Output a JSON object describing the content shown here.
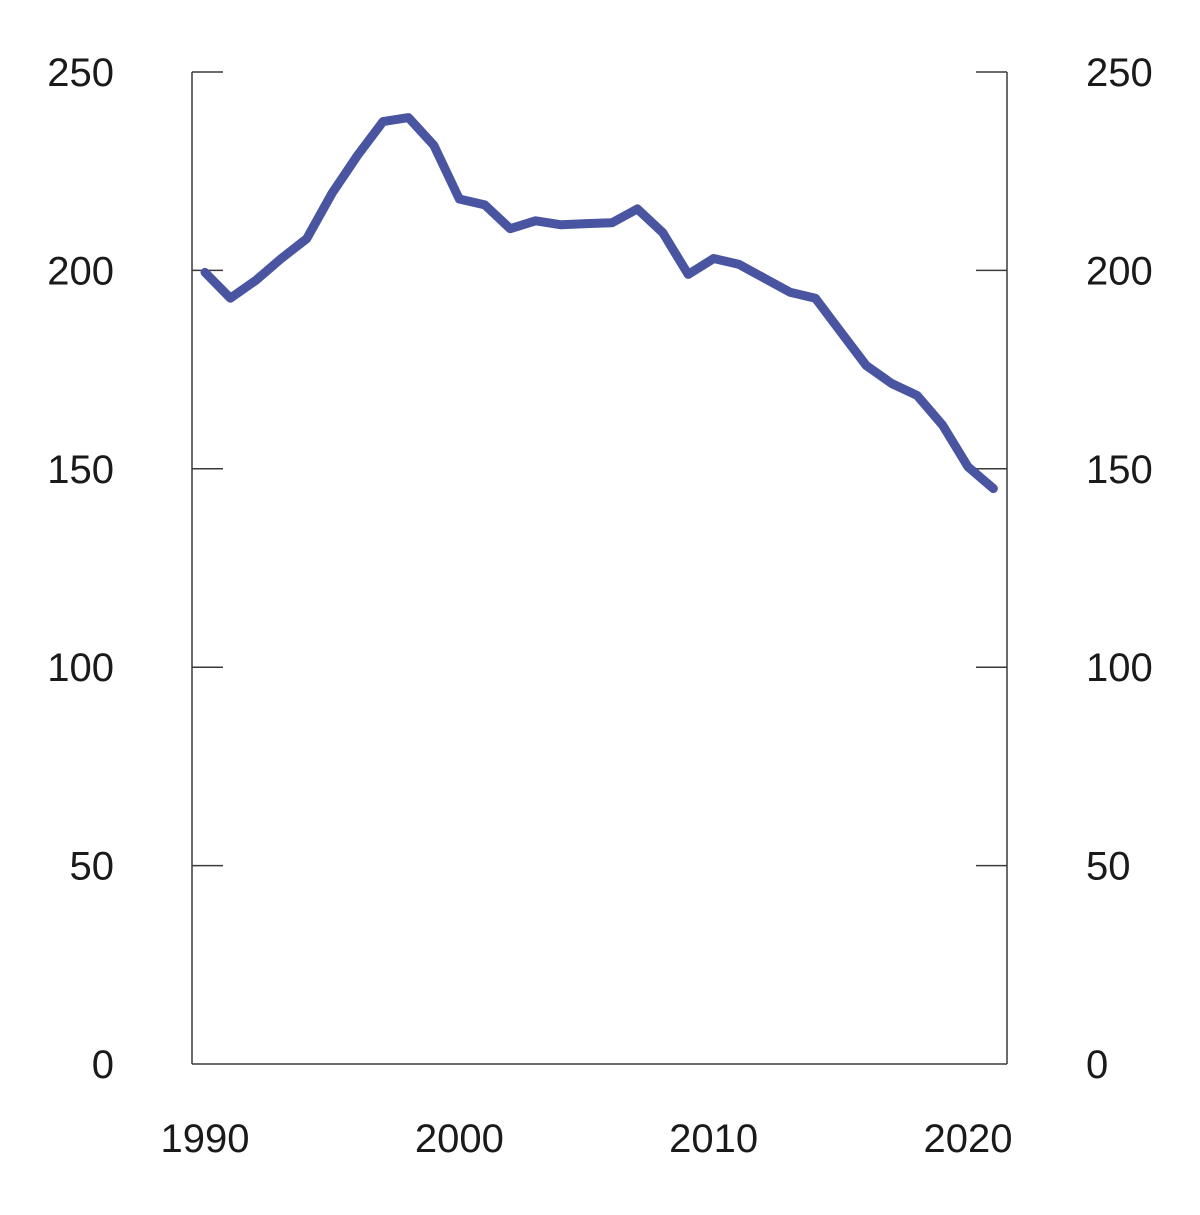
{
  "chart_data": {
    "type": "line",
    "title": "",
    "xlabel": "",
    "ylabel": "",
    "xlim": [
      1990,
      2021
    ],
    "ylim": [
      0,
      250
    ],
    "x_ticks": [
      1990,
      2000,
      2010,
      2020
    ],
    "y_ticks": [
      0,
      50,
      100,
      150,
      200,
      250
    ],
    "x_tick_labels": [
      "1990",
      "2000",
      "2010",
      "2020"
    ],
    "y_tick_labels_left": [
      "0",
      "50",
      "100",
      "150",
      "200",
      "250"
    ],
    "y_tick_labels_right": [
      "0",
      "50",
      "100",
      "150",
      "200",
      "250"
    ],
    "grid": false,
    "legend": "none",
    "x": [
      1990,
      1991,
      1992,
      1993,
      1994,
      1995,
      1996,
      1997,
      1998,
      1999,
      2000,
      2001,
      2002,
      2003,
      2004,
      2005,
      2006,
      2007,
      2008,
      2009,
      2010,
      2011,
      2012,
      2013,
      2014,
      2015,
      2016,
      2017,
      2018,
      2019,
      2020,
      2021
    ],
    "series": [
      {
        "color": "#4a55a2",
        "values": [
          199.5,
          193.0,
          197.5,
          203.0,
          208.0,
          219.5,
          229.0,
          237.5,
          238.5,
          231.5,
          218.0,
          216.5,
          210.5,
          212.5,
          211.5,
          211.8,
          212.0,
          215.5,
          209.5,
          199.0,
          203.0,
          201.5,
          198.0,
          194.5,
          193.0,
          184.5,
          176.0,
          171.5,
          168.5,
          161.0,
          150.5,
          145.0
        ]
      }
    ]
  }
}
